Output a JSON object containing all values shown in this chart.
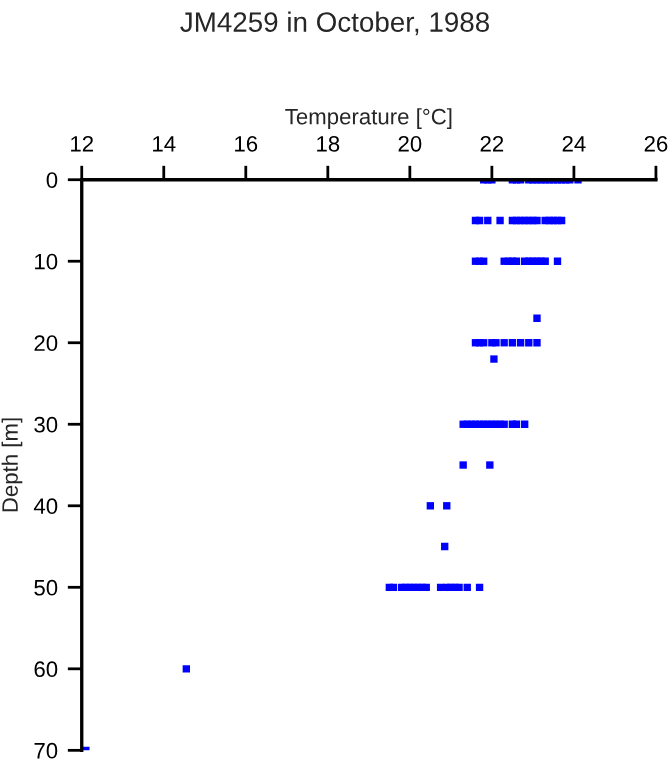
{
  "chart_data": {
    "type": "scatter",
    "title": "JM4259 in October, 1988",
    "xlabel": "Temperature [°C]",
    "ylabel": "Depth [m]",
    "x": [
      21.8,
      21.9,
      22.0,
      22.5,
      22.6,
      22.7,
      22.9,
      23.0,
      23.1,
      23.2,
      23.3,
      23.4,
      23.5,
      23.6,
      23.7,
      23.8,
      23.9,
      24.1,
      21.6,
      21.7,
      21.9,
      22.2,
      22.5,
      22.6,
      22.7,
      22.8,
      22.9,
      23.0,
      23.1,
      23.3,
      23.4,
      23.5,
      23.6,
      23.7,
      21.6,
      21.7,
      21.8,
      22.3,
      22.4,
      22.5,
      22.6,
      22.8,
      22.9,
      23.0,
      23.1,
      23.2,
      23.3,
      23.6,
      23.1,
      21.6,
      21.7,
      21.8,
      22.0,
      22.1,
      22.3,
      22.5,
      22.7,
      22.9,
      23.1,
      22.05,
      21.3,
      21.4,
      21.5,
      21.6,
      21.7,
      21.8,
      21.9,
      22.0,
      22.1,
      22.2,
      22.3,
      22.5,
      22.6,
      22.8,
      21.3,
      21.95,
      20.5,
      20.9,
      20.85,
      19.5,
      19.6,
      19.8,
      19.9,
      20.0,
      20.1,
      20.2,
      20.3,
      20.4,
      20.75,
      20.9,
      21.0,
      21.1,
      21.2,
      21.4,
      21.7,
      14.55,
      12.1
    ],
    "values": [
      0,
      0,
      0,
      0,
      0,
      0,
      0,
      0,
      0,
      0,
      0,
      0,
      0,
      0,
      0,
      0,
      0,
      0,
      5,
      5,
      5,
      5,
      5,
      5,
      5,
      5,
      5,
      5,
      5,
      5,
      5,
      5,
      5,
      5,
      10,
      10,
      10,
      10,
      10,
      10,
      10,
      10,
      10,
      10,
      10,
      10,
      10,
      10,
      17,
      20,
      20,
      20,
      20,
      20,
      20,
      20,
      20,
      20,
      20,
      22,
      30,
      30,
      30,
      30,
      30,
      30,
      30,
      30,
      30,
      30,
      30,
      30,
      30,
      30,
      35,
      35,
      40,
      40,
      45,
      50,
      50,
      50,
      50,
      50,
      50,
      50,
      50,
      50,
      50,
      50,
      50,
      50,
      50,
      50,
      50,
      60,
      70
    ],
    "color": "#0000ff",
    "marker": "square",
    "xlim": [
      12,
      26
    ],
    "xticks": [
      12,
      14,
      16,
      18,
      20,
      22,
      24,
      26
    ],
    "ylim": [
      70,
      0
    ],
    "yticks": [
      0,
      10,
      20,
      30,
      40,
      50,
      60,
      70
    ],
    "grid": false,
    "legend": false
  }
}
